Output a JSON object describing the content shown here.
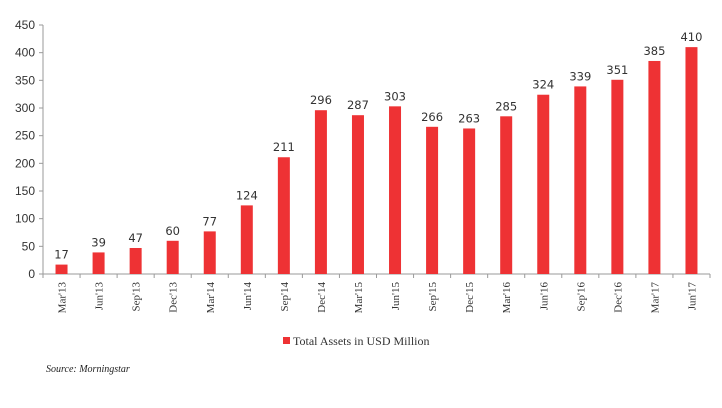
{
  "chart_data": {
    "type": "bar",
    "categories": [
      "Mar'13",
      "Jun'13",
      "Sep'13",
      "Dec'13",
      "Mar'14",
      "Jun'14",
      "Sep'14",
      "Dec'14",
      "Mar'15",
      "Jun'15",
      "Sep'15",
      "Dec'15",
      "Mar'16",
      "Jun'16",
      "Sep'16",
      "Dec'16",
      "Mar'17",
      "Jun'17"
    ],
    "series": [
      {
        "name": "Total Assets in USD Million",
        "values": [
          17,
          39,
          47,
          60,
          77,
          124,
          211,
          296,
          287,
          303,
          266,
          263,
          285,
          324,
          339,
          351,
          385,
          410
        ]
      }
    ],
    "ylim": [
      0,
      450
    ],
    "yticks": [
      0,
      50,
      100,
      150,
      200,
      250,
      300,
      350,
      400,
      450
    ],
    "grid": false,
    "legend_position": "bottom-center",
    "bar_color": "#ee3234",
    "source": "Source: Morningstar"
  }
}
